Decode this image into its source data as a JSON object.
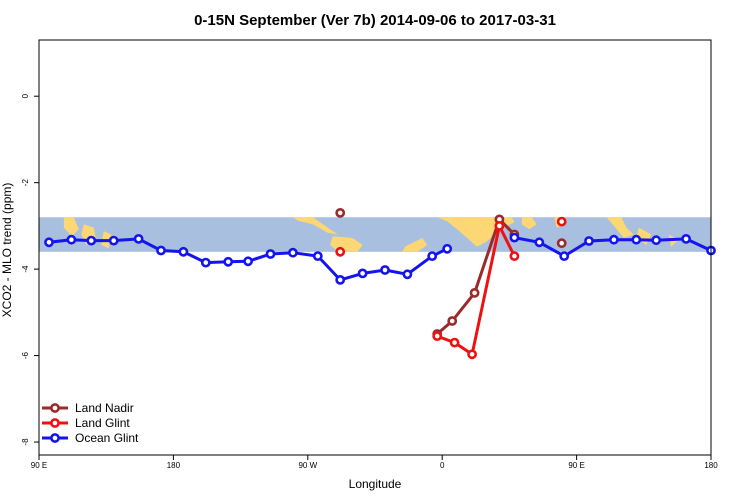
{
  "chart_data": {
    "type": "line",
    "title": "0-15N September (Ver 7b)   2014-09-06 to 2017-03-31",
    "xlabel": "Longitude",
    "ylabel": "XCO2 - MLO trend (ppm)",
    "xlim": [
      -90,
      180
    ],
    "ylim": [
      -8.3,
      1.3
    ],
    "xticks": [
      {
        "value": -90,
        "label": "90 E"
      },
      {
        "value": -36,
        "label": "180"
      },
      {
        "value": 18,
        "label": "90 W"
      },
      {
        "value": 72,
        "label": "0"
      },
      {
        "value": 126,
        "label": "90 E"
      },
      {
        "value": 180,
        "label": "180"
      }
    ],
    "yticks": [
      {
        "value": 0,
        "label": "0"
      },
      {
        "value": -2,
        "label": "-2"
      },
      {
        "value": -4,
        "label": "-4"
      },
      {
        "value": -6,
        "label": "-6"
      },
      {
        "value": -8,
        "label": "-8"
      }
    ],
    "map_band": {
      "ymin": -3.6,
      "ymax": -2.8,
      "ocean_color": "#a9bfdf",
      "land_color": "#fcd773"
    },
    "legend_position": "bottom-left",
    "series": [
      {
        "name": "Land Nadir",
        "color": "#9b2a2a",
        "x": [
          31,
          70,
          76,
          85,
          95,
          101,
          120
        ],
        "y": [
          -2.7,
          -5.5,
          -5.2,
          -4.55,
          -2.85,
          -3.2,
          -3.4
        ],
        "connected": [
          false,
          true,
          true,
          true,
          true,
          true,
          false
        ]
      },
      {
        "name": "Land Glint",
        "color": "#ee1111",
        "x": [
          31,
          70,
          77,
          84,
          95,
          101,
          120
        ],
        "y": [
          -3.6,
          -5.55,
          -5.7,
          -5.97,
          -3.0,
          -3.7,
          -2.9
        ],
        "connected": [
          false,
          true,
          true,
          true,
          true,
          true,
          false
        ]
      },
      {
        "name": "Ocean Glint",
        "color": "#1414ee",
        "x": [
          -86,
          -77,
          -69,
          -60,
          -50,
          -41,
          -32,
          -23,
          -14,
          -6,
          3,
          12,
          22,
          31,
          40,
          49,
          58,
          68,
          74,
          101,
          111,
          121,
          131,
          141,
          150,
          158,
          170,
          180
        ],
        "y": [
          -3.38,
          -3.32,
          -3.34,
          -3.34,
          -3.3,
          -3.57,
          -3.6,
          -3.85,
          -3.83,
          -3.82,
          -3.65,
          -3.62,
          -3.7,
          -4.25,
          -4.1,
          -4.02,
          -4.12,
          -3.7,
          -3.53,
          -3.27,
          -3.38,
          -3.7,
          -3.35,
          -3.32,
          -3.32,
          -3.33,
          -3.3,
          -3.57
        ],
        "segments": [
          [
            0,
            19
          ],
          [
            19,
            28
          ]
        ]
      }
    ]
  }
}
